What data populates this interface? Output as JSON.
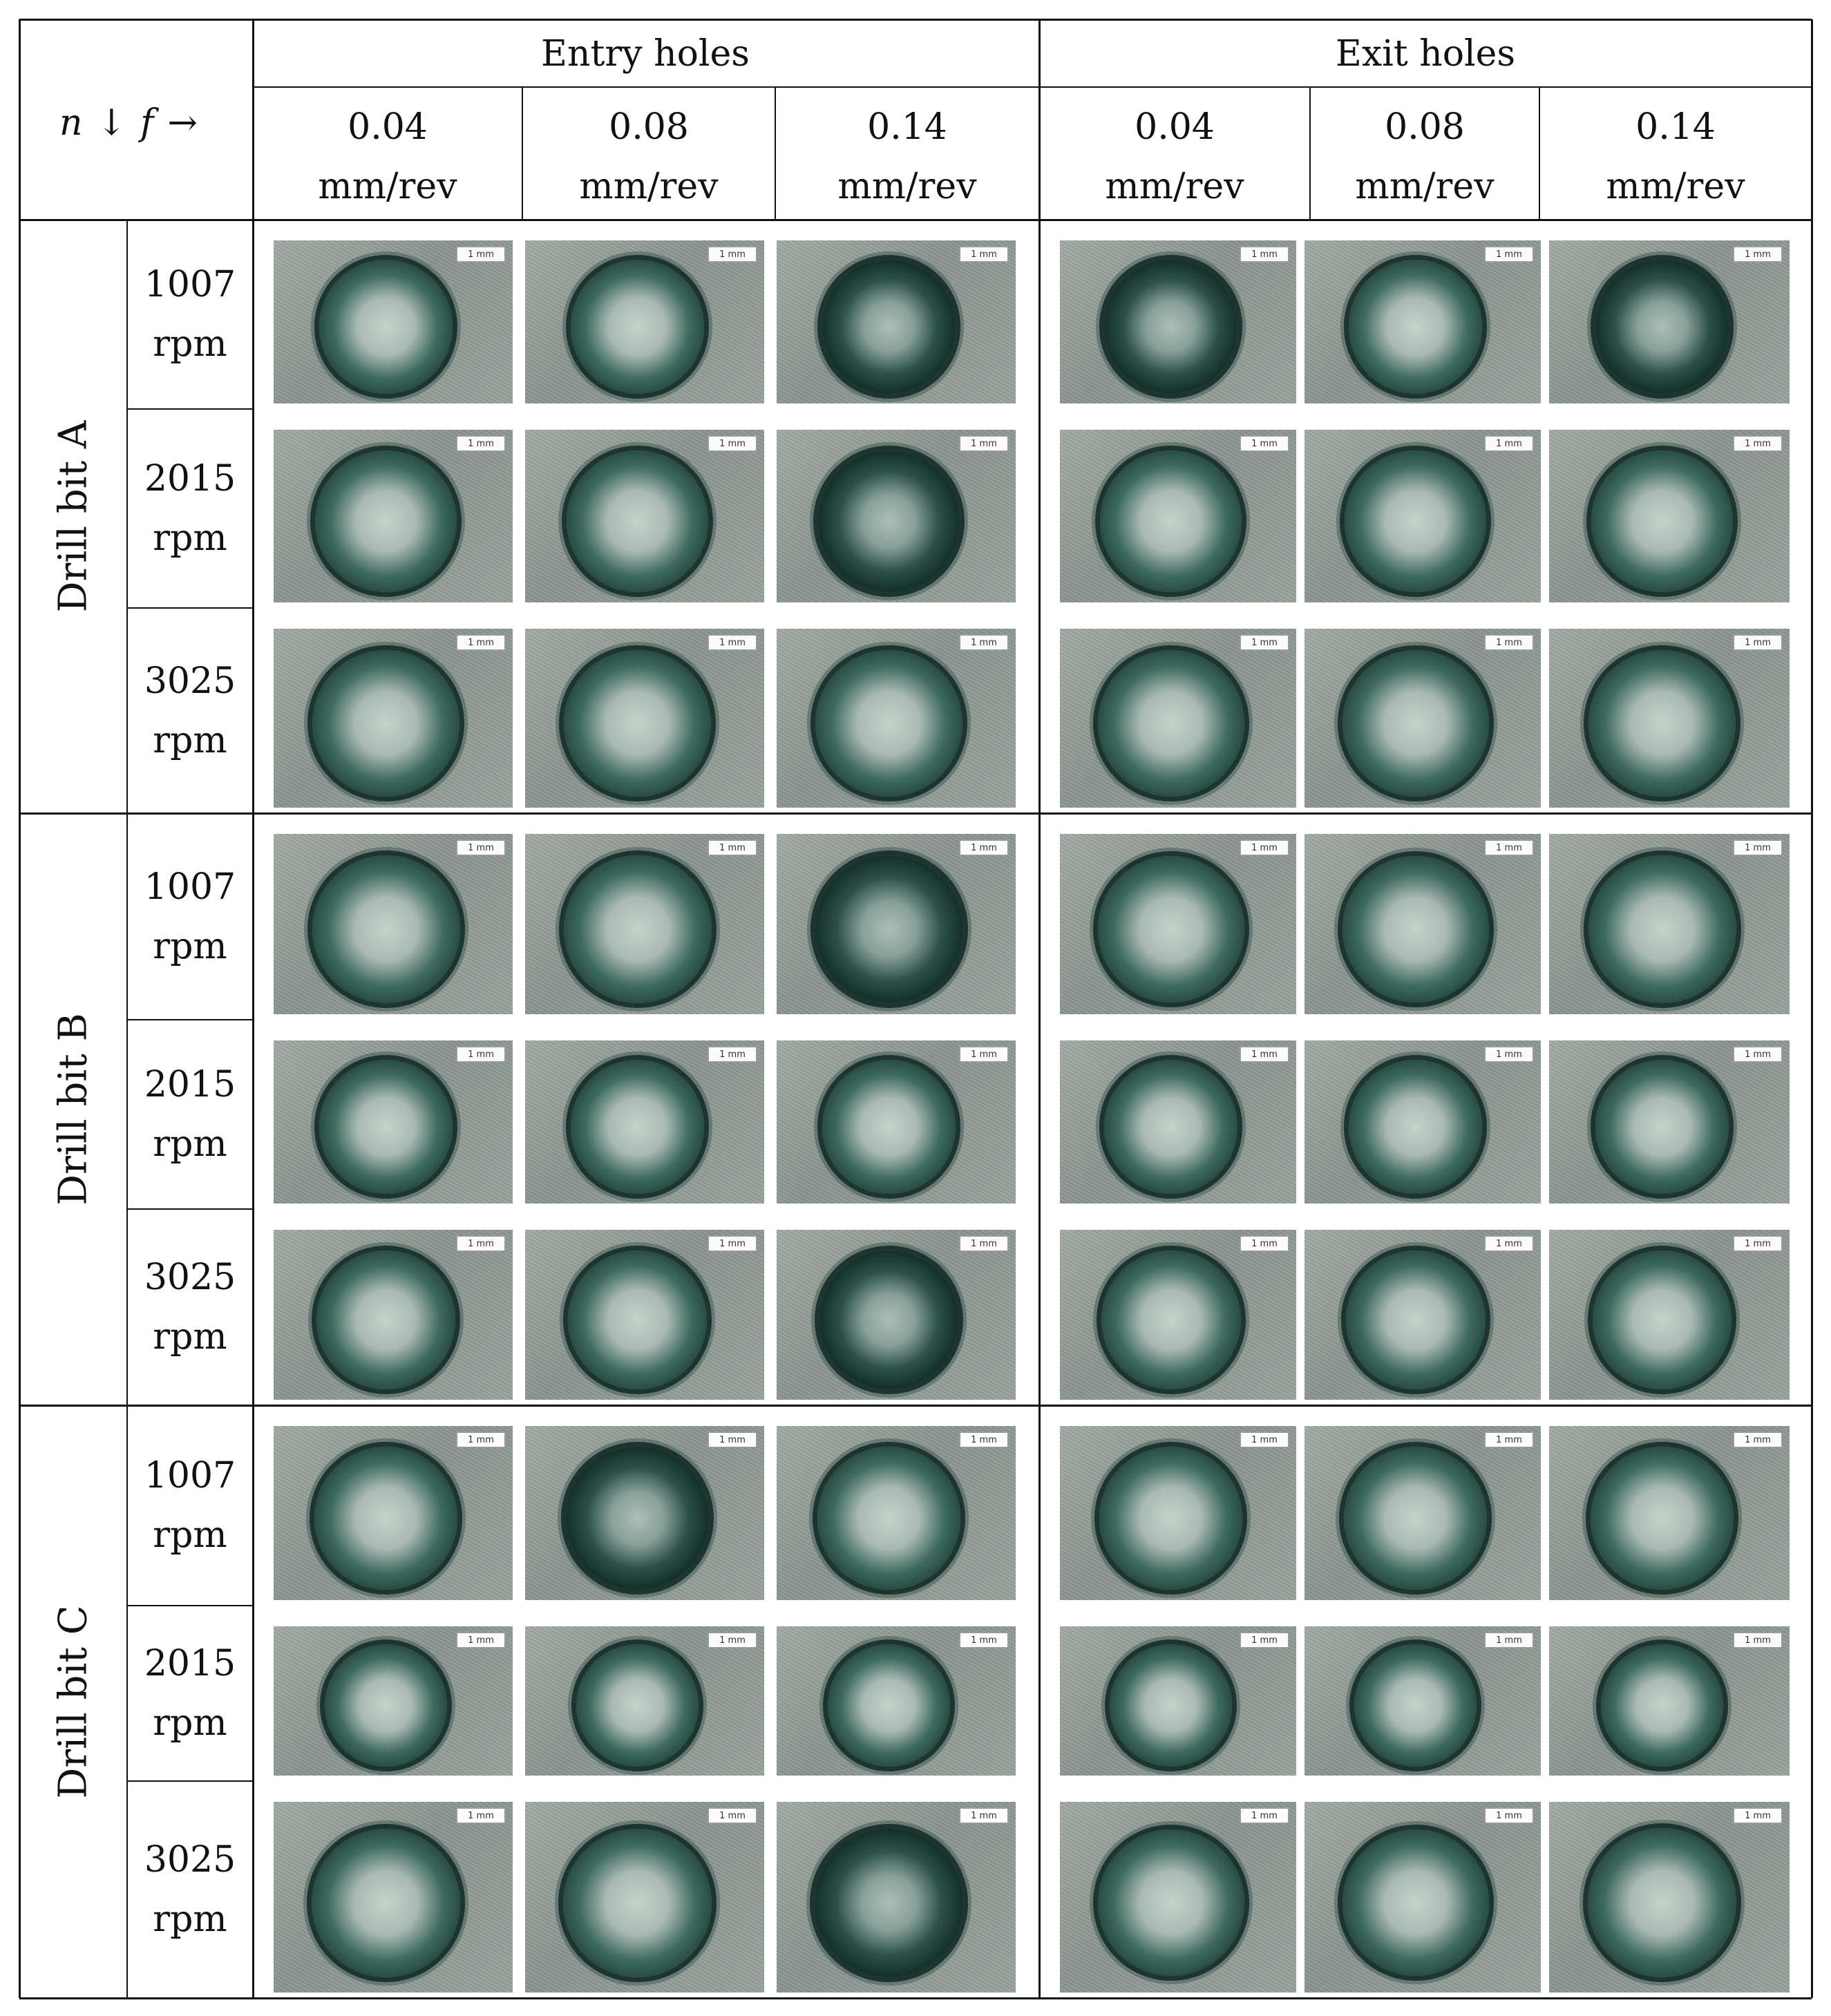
{
  "header": {
    "corner": {
      "n": "n",
      "down_arrow": "↓",
      "f": "f",
      "right_arrow": "→"
    },
    "groups": [
      "Entry holes",
      "Exit holes"
    ],
    "feeds": [
      {
        "value": "0.04",
        "unit": "mm/rev"
      },
      {
        "value": "0.08",
        "unit": "mm/rev"
      },
      {
        "value": "0.14",
        "unit": "mm/rev"
      },
      {
        "value": "0.04",
        "unit": "mm/rev"
      },
      {
        "value": "0.08",
        "unit": "mm/rev"
      },
      {
        "value": "0.14",
        "unit": "mm/rev"
      }
    ]
  },
  "drill_bits": [
    {
      "label": "Drill bit A"
    },
    {
      "label": "Drill bit B"
    },
    {
      "label": "Drill bit C"
    }
  ],
  "speeds": [
    {
      "value": "1007",
      "unit": "rpm"
    },
    {
      "value": "2015",
      "unit": "rpm"
    },
    {
      "value": "3025",
      "unit": "rpm"
    }
  ],
  "scale_bar_label": "1 mm",
  "dark_holes": [
    [
      0,
      2
    ],
    [
      0,
      3
    ],
    [
      0,
      5
    ],
    [
      1,
      2
    ],
    [
      3,
      2
    ],
    [
      5,
      2
    ],
    [
      6,
      1
    ],
    [
      8,
      2
    ]
  ]
}
